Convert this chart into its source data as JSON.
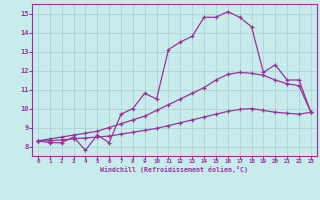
{
  "xlabel": "Windchill (Refroidissement éolien,°C)",
  "bg_color": "#c8ecec",
  "grid_color": "#b0d8d8",
  "line_color": "#993399",
  "xlim": [
    -0.5,
    23.5
  ],
  "ylim": [
    7.5,
    15.5
  ],
  "xticks": [
    0,
    1,
    2,
    3,
    4,
    5,
    6,
    7,
    8,
    9,
    10,
    11,
    12,
    13,
    14,
    15,
    16,
    17,
    18,
    19,
    20,
    21,
    22,
    23
  ],
  "yticks": [
    8,
    9,
    10,
    11,
    12,
    13,
    14,
    15
  ],
  "line1_x": [
    0,
    1,
    2,
    3,
    4,
    5,
    6,
    7,
    8,
    9,
    10,
    11,
    12,
    13,
    14,
    15,
    16,
    17,
    18,
    19,
    20,
    21,
    22,
    23
  ],
  "line1_y": [
    8.3,
    8.2,
    8.2,
    8.5,
    7.8,
    8.6,
    8.2,
    9.7,
    10.0,
    10.8,
    10.5,
    13.1,
    13.5,
    13.8,
    14.8,
    14.8,
    15.1,
    14.8,
    14.3,
    11.9,
    12.3,
    11.5,
    11.5,
    9.8
  ],
  "line2_x": [
    0,
    1,
    2,
    3,
    4,
    5,
    6,
    7,
    8,
    9,
    10,
    11,
    12,
    13,
    14,
    15,
    16,
    17,
    18,
    19,
    20,
    21,
    22,
    23
  ],
  "line2_y": [
    8.3,
    8.4,
    8.5,
    8.6,
    8.7,
    8.8,
    9.0,
    9.2,
    9.4,
    9.6,
    9.9,
    10.2,
    10.5,
    10.8,
    11.1,
    11.5,
    11.8,
    11.9,
    11.85,
    11.75,
    11.5,
    11.3,
    11.2,
    9.8
  ],
  "line3_x": [
    0,
    1,
    2,
    3,
    4,
    5,
    6,
    7,
    8,
    9,
    10,
    11,
    12,
    13,
    14,
    15,
    16,
    17,
    18,
    19,
    20,
    21,
    22,
    23
  ],
  "line3_y": [
    8.3,
    8.3,
    8.35,
    8.4,
    8.45,
    8.5,
    8.55,
    8.65,
    8.75,
    8.85,
    8.95,
    9.1,
    9.25,
    9.4,
    9.55,
    9.7,
    9.85,
    9.95,
    10.0,
    9.9,
    9.8,
    9.75,
    9.7,
    9.8
  ]
}
